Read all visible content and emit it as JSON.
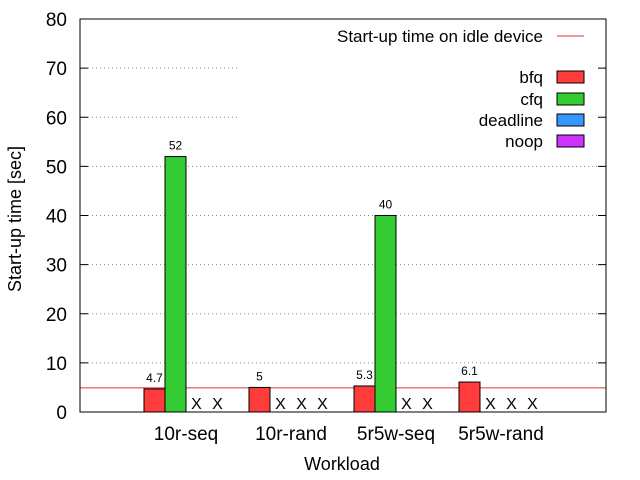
{
  "chart_data": {
    "type": "bar",
    "xlabel": "Workload",
    "ylabel": "Start-up time [sec]",
    "ylim": [
      0,
      80
    ],
    "yticks": [
      0,
      10,
      20,
      30,
      40,
      50,
      60,
      70,
      80
    ],
    "categories": [
      "10r-seq",
      "10r-rand",
      "5r5w-seq",
      "5r5w-rand"
    ],
    "grid": "horizontal dotted",
    "legend_position": "top-right",
    "reference_line": {
      "name": "Start-up time on idle device",
      "value": 4.9,
      "color": "#e03030"
    },
    "series": [
      {
        "name": "bfq",
        "color": "#ff3b3b",
        "values": [
          4.7,
          5,
          5.3,
          6.1
        ],
        "labels": [
          "4.7",
          "5",
          "5.3",
          "6.1"
        ]
      },
      {
        "name": "cfq",
        "color": "#33cc33",
        "values": [
          52,
          null,
          40,
          null
        ],
        "labels": [
          "52",
          null,
          "40",
          null
        ]
      },
      {
        "name": "deadline",
        "color": "#3399ff",
        "values": [
          null,
          null,
          null,
          null
        ],
        "labels": [
          null,
          null,
          null,
          null
        ]
      },
      {
        "name": "noop",
        "color": "#cc33ff",
        "values": [
          null,
          null,
          null,
          null
        ],
        "labels": [
          null,
          null,
          null,
          null
        ]
      }
    ],
    "missing_marker": "X"
  }
}
